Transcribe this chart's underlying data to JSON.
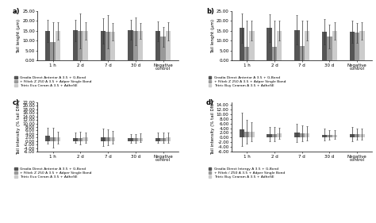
{
  "panels": [
    {
      "label": "a)",
      "ylabel": "Tail lenght (μm)",
      "ylim": [
        0,
        25
      ],
      "shown_ticks": [
        0,
        5,
        10,
        15,
        20,
        25
      ],
      "shown_labels": [
        "0.00",
        "5.00",
        "10.00",
        "15.00",
        "20.00",
        "25.00"
      ],
      "categories": [
        "1 h",
        "2 d",
        "7 d",
        "30 d",
        "Negative\ncontrol"
      ],
      "series": [
        {
          "values": [
            15.0,
            15.2,
            15.0,
            15.5,
            14.8
          ],
          "errors": [
            5.5,
            5.5,
            6.5,
            5.0,
            5.0
          ],
          "color": "#555555"
        },
        {
          "values": [
            9.5,
            15.0,
            14.5,
            14.8,
            12.0
          ],
          "errors": [
            10.0,
            9.0,
            8.5,
            7.0,
            5.0
          ],
          "color": "#999999"
        },
        {
          "values": [
            15.0,
            15.0,
            14.5,
            14.8,
            14.8
          ],
          "errors": [
            4.5,
            4.5,
            4.5,
            4.0,
            4.5
          ],
          "color": "#cccccc"
        }
      ],
      "legend": [
        "Gradia Direct Anterior A 3.5 + G-Bond",
        "+ Filtek Z 250 A 3.5 + Adper Single Bond",
        "Tetric Evo Ceram A 3.5 + AdheSE"
      ]
    },
    {
      "label": "b)",
      "ylabel": "Tail lenght (μm)",
      "ylim": [
        0,
        25
      ],
      "shown_ticks": [
        0,
        5,
        10,
        15,
        20,
        25
      ],
      "shown_labels": [
        "0.00",
        "5.00",
        "10.00",
        "15.00",
        "20.00",
        "25.00"
      ],
      "categories": [
        "1 h",
        "2 d",
        "7 d",
        "30 d",
        "Negative\ncontrol"
      ],
      "series": [
        {
          "values": [
            16.5,
            16.5,
            15.5,
            14.5,
            14.5
          ],
          "errors": [
            7.5,
            7.0,
            7.5,
            6.5,
            5.5
          ],
          "color": "#555555"
        },
        {
          "values": [
            7.0,
            7.0,
            7.5,
            12.0,
            14.0
          ],
          "errors": [
            13.0,
            13.0,
            12.5,
            6.0,
            5.0
          ],
          "color": "#999999"
        },
        {
          "values": [
            15.0,
            15.0,
            15.0,
            15.0,
            15.0
          ],
          "errors": [
            5.0,
            5.0,
            5.0,
            4.5,
            4.5
          ],
          "color": "#cccccc"
        }
      ],
      "legend": [
        "Gradia Direct Anterior A 3.5 + G-Bond",
        "+ Filtek Z 250 A 3.5 + Adper Single Bond",
        "Tetric Buy Cearam A 3.5 + AdheSE"
      ]
    },
    {
      "label": "c)",
      "ylabel": "Tail intensity (% tail DNA)",
      "ylim": [
        -6,
        22
      ],
      "shown_ticks": [
        -6,
        -4,
        -2,
        0,
        2,
        4,
        6,
        8,
        10,
        12,
        14,
        16,
        18,
        20,
        22
      ],
      "shown_labels": [
        "-6.00",
        "-4.00",
        "-2.00",
        "0.00",
        "2.00",
        "4.00",
        "6.00",
        "8.00",
        "10.00",
        "12.00",
        "14.00",
        "16.00",
        "18.00",
        "20.00",
        "22.00"
      ],
      "categories": [
        "1 h",
        "2 d",
        "7 d",
        "30 d",
        "Negative\ncontrol"
      ],
      "series": [
        {
          "values": [
            3.0,
            1.8,
            2.2,
            1.6,
            1.8
          ],
          "errors": [
            4.5,
            3.0,
            5.0,
            2.5,
            3.0
          ],
          "color": "#555555"
        },
        {
          "values": [
            2.0,
            1.8,
            2.0,
            1.6,
            1.8
          ],
          "errors": [
            5.5,
            3.5,
            4.5,
            2.5,
            3.0
          ],
          "color": "#999999"
        },
        {
          "values": [
            2.0,
            2.0,
            2.2,
            1.8,
            2.0
          ],
          "errors": [
            3.5,
            3.0,
            3.5,
            2.5,
            2.8
          ],
          "color": "#cccccc"
        }
      ],
      "legend": [
        "Gradia Direct Anterior A 3.5 + G-Bond",
        "+ Filtek Z 250 A 3.5 + Adper Single Bond",
        "Tetric Evo Ceram A 3.5 + AdheSE"
      ]
    },
    {
      "label": "d)",
      "ylabel": "Tail intensity (% tail DNA)",
      "ylim": [
        -6,
        15
      ],
      "shown_ticks": [
        -6,
        -4,
        -2,
        0,
        2,
        4,
        6,
        8,
        10,
        12,
        14
      ],
      "shown_labels": [
        "-6.00",
        "-4.00",
        "-2.00",
        "0.00",
        "2.00",
        "4.00",
        "6.00",
        "8.00",
        "10.00",
        "12.00",
        "14.00"
      ],
      "categories": [
        "1 h",
        "2 d",
        "7 d",
        "30 d",
        "Negative\ncontrol"
      ],
      "series": [
        {
          "values": [
            3.5,
            1.5,
            2.0,
            1.2,
            1.5
          ],
          "errors": [
            7.0,
            3.0,
            4.0,
            2.5,
            3.0
          ],
          "color": "#555555"
        },
        {
          "values": [
            2.5,
            1.5,
            1.8,
            1.0,
            1.5
          ],
          "errors": [
            5.0,
            3.0,
            3.5,
            2.0,
            2.5
          ],
          "color": "#999999"
        },
        {
          "values": [
            2.5,
            1.8,
            1.8,
            1.2,
            1.5
          ],
          "errors": [
            4.0,
            2.5,
            3.0,
            1.8,
            2.5
          ],
          "color": "#cccccc"
        }
      ],
      "legend": [
        "Gradia Direct Intergy A 3.5 + G-Bond",
        "+ Filtek / Z50 A 3.5 + Adper Single Bond",
        "Tetric Buy Cearam A 3.5 + AdheSE"
      ]
    }
  ],
  "background_color": "#ffffff",
  "bar_width": 0.18,
  "fontsize_ylabel": 4.0,
  "fontsize_tick": 4.0,
  "fontsize_xlabel": 4.0,
  "fontsize_legend": 3.2,
  "fontsize_panel_label": 6.0
}
